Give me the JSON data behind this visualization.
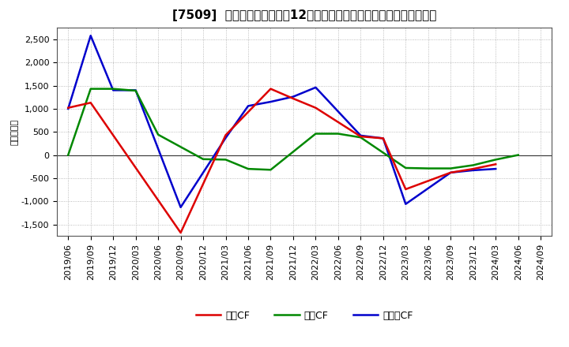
{
  "title": "[7509]  キャッシュフローの12か月移動合計の対前年同期増減額の推移",
  "ylabel": "（百万円）",
  "x_labels": [
    "2019/06",
    "2019/09",
    "2019/12",
    "2020/03",
    "2020/06",
    "2020/09",
    "2020/12",
    "2021/03",
    "2021/06",
    "2021/09",
    "2021/12",
    "2022/03",
    "2022/06",
    "2022/09",
    "2022/12",
    "2023/03",
    "2023/06",
    "2023/09",
    "2023/12",
    "2024/03",
    "2024/06",
    "2024/09"
  ],
  "eigyo_x": [
    0,
    1,
    5,
    7,
    9,
    10,
    11,
    13,
    14,
    15,
    17,
    18,
    19
  ],
  "eigyo_y": [
    1020,
    1130,
    -1680,
    430,
    1430,
    1220,
    1020,
    400,
    360,
    -740,
    -380,
    -300,
    -200
  ],
  "eigyo_color": "#dd0000",
  "toshi_x": [
    0,
    1,
    2,
    3,
    4,
    6,
    7,
    8,
    9,
    11,
    12,
    13,
    15,
    16,
    17,
    18,
    19,
    20
  ],
  "toshi_y": [
    0,
    1430,
    1430,
    1390,
    440,
    -90,
    -100,
    -300,
    -320,
    460,
    460,
    380,
    -280,
    -290,
    -290,
    -220,
    -100,
    0
  ],
  "toshi_color": "#008800",
  "free_x": [
    0,
    1,
    2,
    3,
    5,
    7,
    8,
    9,
    10,
    11,
    13,
    14,
    15,
    17,
    18,
    19
  ],
  "free_y": [
    1000,
    2580,
    1400,
    1400,
    -1130,
    370,
    1060,
    1150,
    1260,
    1460,
    420,
    360,
    -1060,
    -380,
    -330,
    -300
  ],
  "free_color": "#0000cc",
  "ylim": [
    -1750,
    2750
  ],
  "yticks": [
    -1500,
    -1000,
    -500,
    0,
    500,
    1000,
    1500,
    2000,
    2500
  ],
  "line_width": 1.8,
  "legend_labels": [
    "営業CF",
    "投資CF",
    "フリーCF"
  ],
  "background_color": "#ffffff",
  "grid_color": "#aaaaaa",
  "zero_line_color": "#333333",
  "title_fontsize": 11,
  "ylabel_fontsize": 8,
  "tick_fontsize": 8,
  "legend_fontsize": 9
}
